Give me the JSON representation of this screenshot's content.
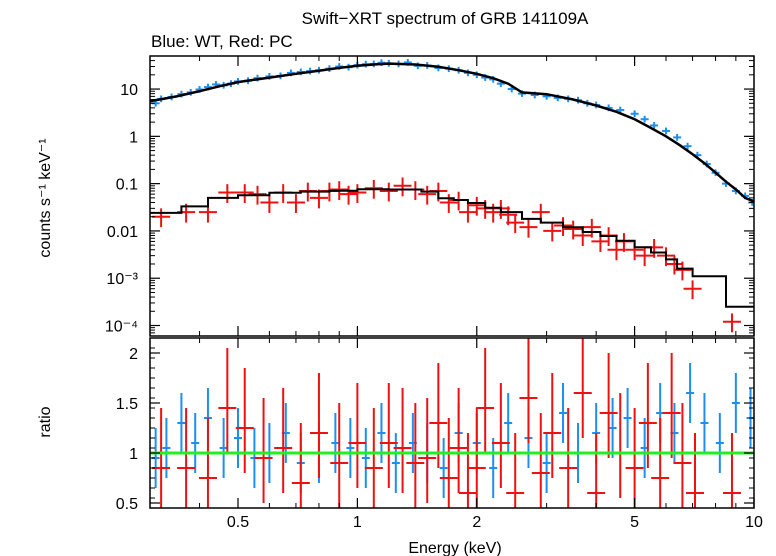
{
  "chart_data": {
    "type": "scatter",
    "title": "Swift−XRT spectrum of GRB 141109A",
    "subtitle": "Blue: WT, Red: PC",
    "xlabel": "Energy (keV)",
    "x_scale": "log",
    "xlim": [
      0.3,
      10
    ],
    "x_ticks": [
      {
        "value": 0.5,
        "label": "0.5"
      },
      {
        "value": 1,
        "label": "1"
      },
      {
        "value": 2,
        "label": "2"
      },
      {
        "value": 5,
        "label": "5"
      },
      {
        "value": 10,
        "label": "10"
      }
    ],
    "colors": {
      "wt": "#1e8ff0",
      "pc": "#ee1111",
      "model": "#000000",
      "unity": "#22ee22"
    },
    "panels": [
      {
        "name": "spectrum",
        "ylabel": "counts s⁻¹ keV⁻¹",
        "y_scale": "log",
        "ylim": [
          6e-05,
          50
        ],
        "y_ticks": [
          {
            "value": 10,
            "label": "10"
          },
          {
            "value": 1,
            "label": "1"
          },
          {
            "value": 0.1,
            "label": "0.1"
          },
          {
            "value": 0.01,
            "label": "0.01"
          },
          {
            "value": 0.001,
            "label": "10⁻³"
          },
          {
            "value": 0.0001,
            "label": "10⁻⁴"
          }
        ],
        "series": [
          {
            "id": "wt_model",
            "x": [
              0.3,
              0.35,
              0.4,
              0.45,
              0.5,
              0.6,
              0.7,
              0.8,
              0.9,
              1.0,
              1.1,
              1.2,
              1.4,
              1.6,
              1.8,
              2.0,
              2.2,
              2.4,
              2.6,
              3.0,
              3.5,
              4.0,
              4.5,
              5.0,
              5.5,
              6.0,
              6.5,
              7.0,
              7.5,
              8.0,
              8.5,
              9.0,
              9.5,
              10.0
            ],
            "y": [
              5.5,
              7.0,
              9.0,
              11.5,
              14.0,
              17.5,
              21.0,
              24.5,
              28.0,
              31.0,
              33.0,
              34.5,
              33.0,
              29.5,
              25.0,
              21.0,
              17.0,
              13.0,
              8.5,
              7.8,
              6.0,
              4.5,
              3.3,
              2.3,
              1.5,
              1.0,
              0.65,
              0.42,
              0.27,
              0.17,
              0.11,
              0.075,
              0.05,
              0.042
            ]
          },
          {
            "id": "wt_data",
            "x": [
              0.31,
              0.32,
              0.34,
              0.36,
              0.38,
              0.4,
              0.42,
              0.44,
              0.46,
              0.48,
              0.5,
              0.53,
              0.56,
              0.6,
              0.64,
              0.68,
              0.72,
              0.76,
              0.8,
              0.85,
              0.9,
              0.95,
              1.0,
              1.05,
              1.1,
              1.15,
              1.2,
              1.27,
              1.34,
              1.42,
              1.5,
              1.6,
              1.7,
              1.8,
              1.9,
              2.0,
              2.1,
              2.2,
              2.3,
              2.45,
              2.6,
              2.8,
              3.0,
              3.2,
              3.4,
              3.6,
              3.8,
              4.0,
              4.3,
              4.6,
              5.0,
              5.3,
              5.6,
              6.0,
              6.4,
              6.8,
              7.2,
              7.6,
              8.0,
              8.5,
              9.0,
              9.5,
              9.9
            ],
            "y": [
              5.0,
              6.2,
              6.8,
              7.8,
              8.5,
              9.8,
              11.0,
              12.5,
              12.0,
              13.0,
              14.5,
              15.0,
              17.0,
              18.5,
              19.0,
              22.0,
              23.0,
              24.0,
              25.0,
              27.0,
              30.0,
              29.0,
              32.0,
              33.5,
              34.0,
              36.0,
              35.0,
              34.0,
              36.5,
              31.0,
              31.5,
              28.0,
              27.0,
              25.0,
              22.0,
              20.0,
              17.5,
              16.0,
              13.0,
              10.0,
              8.0,
              7.5,
              7.0,
              6.5,
              6.2,
              5.8,
              5.0,
              4.6,
              4.0,
              3.6,
              3.0,
              2.3,
              1.7,
              1.3,
              0.95,
              0.62,
              0.4,
              0.26,
              0.17,
              0.1,
              0.07,
              0.055,
              0.04
            ]
          },
          {
            "id": "pc_model_steps",
            "x": [
              0.3,
              0.36,
              0.42,
              0.5,
              0.6,
              0.72,
              0.85,
              1.0,
              1.2,
              1.45,
              1.6,
              1.75,
              1.9,
              2.1,
              2.3,
              2.6,
              2.9,
              3.3,
              3.7,
              4.1,
              4.5,
              5.0,
              5.5,
              6.0,
              6.4,
              7.0,
              8.5,
              10.0
            ],
            "y": [
              0.024,
              0.033,
              0.05,
              0.057,
              0.064,
              0.068,
              0.071,
              0.076,
              0.075,
              0.068,
              0.049,
              0.045,
              0.039,
              0.031,
              0.025,
              0.018,
              0.015,
              0.012,
              0.0095,
              0.0078,
              0.0062,
              0.0045,
              0.0035,
              0.0025,
              0.0016,
              0.0011,
              0.00025,
              0.00025
            ]
          },
          {
            "id": "pc_data",
            "x": [
              0.32,
              0.37,
              0.42,
              0.47,
              0.52,
              0.56,
              0.6,
              0.65,
              0.7,
              0.75,
              0.8,
              0.85,
              0.9,
              0.95,
              1.0,
              1.1,
              1.2,
              1.3,
              1.4,
              1.5,
              1.6,
              1.7,
              1.8,
              1.9,
              2.0,
              2.1,
              2.2,
              2.3,
              2.4,
              2.5,
              2.7,
              2.9,
              3.1,
              3.3,
              3.5,
              3.7,
              3.9,
              4.1,
              4.3,
              4.5,
              4.7,
              5.0,
              5.3,
              5.6,
              6.0,
              6.3,
              6.6,
              7.0,
              8.8
            ],
            "y": [
              0.02,
              0.025,
              0.025,
              0.065,
              0.065,
              0.06,
              0.04,
              0.065,
              0.04,
              0.07,
              0.05,
              0.07,
              0.075,
              0.06,
              0.065,
              0.08,
              0.07,
              0.09,
              0.075,
              0.06,
              0.07,
              0.04,
              0.045,
              0.025,
              0.035,
              0.03,
              0.025,
              0.03,
              0.022,
              0.015,
              0.012,
              0.025,
              0.01,
              0.013,
              0.011,
              0.008,
              0.012,
              0.006,
              0.008,
              0.004,
              0.006,
              0.004,
              0.003,
              0.0045,
              0.003,
              0.002,
              0.0015,
              0.0006,
              0.00012
            ]
          }
        ]
      },
      {
        "name": "ratio",
        "ylabel": "ratio",
        "y_scale": "linear",
        "ylim": [
          0.45,
          2.15
        ],
        "y_ticks": [
          {
            "value": 0.5,
            "label": "0.5"
          },
          {
            "value": 1,
            "label": "1"
          },
          {
            "value": 1.5,
            "label": "1.5"
          },
          {
            "value": 2,
            "label": "2"
          }
        ],
        "reference_line": 1.0,
        "series": [
          {
            "id": "wt_ratio",
            "x": [
              0.31,
              0.33,
              0.36,
              0.39,
              0.42,
              0.46,
              0.5,
              0.55,
              0.6,
              0.66,
              0.72,
              0.8,
              0.88,
              0.96,
              1.05,
              1.15,
              1.25,
              1.38,
              1.5,
              1.65,
              1.8,
              2.0,
              2.2,
              2.4,
              2.7,
              3.0,
              3.3,
              3.6,
              4.0,
              4.4,
              4.8,
              5.3,
              5.8,
              6.3,
              6.9,
              7.5,
              8.2,
              9.0,
              9.8
            ],
            "y": [
              0.95,
              1.05,
              1.3,
              1.1,
              1.35,
              1.05,
              1.15,
              0.95,
              1.0,
              1.2,
              0.9,
              1.0,
              1.1,
              1.05,
              0.95,
              1.2,
              0.9,
              1.1,
              1.0,
              0.85,
              1.2,
              1.1,
              0.85,
              1.3,
              1.15,
              0.9,
              1.4,
              1.0,
              1.2,
              1.25,
              1.35,
              1.05,
              1.4,
              1.2,
              1.6,
              1.3,
              1.1,
              1.5,
              1.35
            ]
          },
          {
            "id": "pc_ratio",
            "x": [
              0.32,
              0.37,
              0.42,
              0.47,
              0.52,
              0.58,
              0.65,
              0.72,
              0.8,
              0.9,
              1.0,
              1.1,
              1.2,
              1.3,
              1.4,
              1.5,
              1.6,
              1.7,
              1.8,
              1.9,
              2.0,
              2.1,
              2.3,
              2.5,
              2.7,
              2.9,
              3.1,
              3.4,
              3.7,
              4.0,
              4.3,
              4.6,
              5.0,
              5.4,
              5.8,
              6.2,
              6.6,
              7.1,
              8.8
            ],
            "y": [
              0.85,
              0.85,
              0.75,
              1.45,
              1.25,
              0.95,
              1.05,
              0.7,
              1.2,
              0.9,
              1.1,
              0.85,
              1.1,
              1.05,
              0.9,
              0.95,
              1.3,
              0.75,
              1.05,
              0.6,
              0.85,
              1.45,
              1.1,
              0.6,
              1.55,
              0.8,
              1.2,
              0.85,
              1.6,
              0.6,
              1.4,
              1.0,
              0.85,
              1.3,
              0.75,
              1.4,
              0.9,
              0.6,
              0.6
            ]
          }
        ]
      }
    ]
  }
}
